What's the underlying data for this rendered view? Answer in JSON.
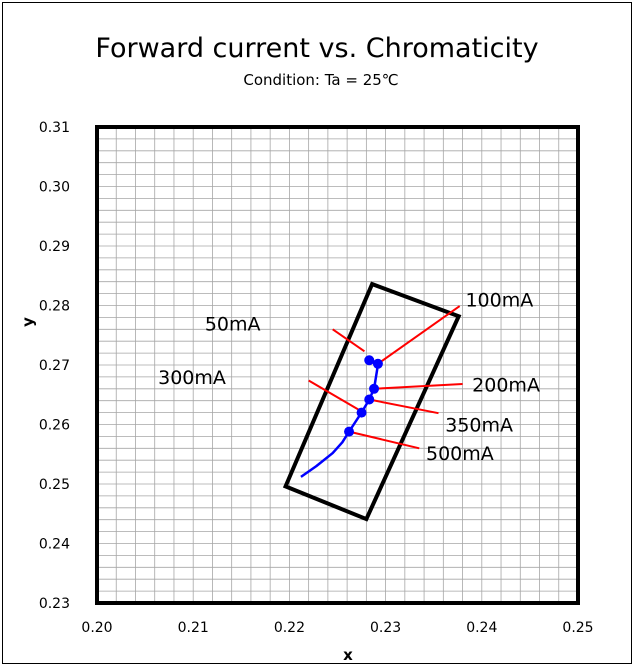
{
  "chart_data": {
    "type": "scatter",
    "title": "Forward current vs. Chromaticity",
    "subtitle": "Condition: Ta = 25℃",
    "xlabel": "x",
    "ylabel": "y",
    "xlim": [
      0.2,
      0.25
    ],
    "ylim": [
      0.23,
      0.31
    ],
    "x_ticks": [
      "0.20",
      "0.21",
      "0.22",
      "0.23",
      "0.24",
      "0.25"
    ],
    "y_ticks": [
      "0.23",
      "0.24",
      "0.25",
      "0.26",
      "0.27",
      "0.28",
      "0.29",
      "0.30",
      "0.31"
    ],
    "grid": true,
    "colors": {
      "series": "#0000ff",
      "leader": "#ff0000",
      "box": "#000000"
    },
    "series": [
      {
        "curve": [
          [
            0.2212,
            0.2512
          ],
          [
            0.2228,
            0.253
          ],
          [
            0.2245,
            0.2552
          ],
          [
            0.2255,
            0.257
          ],
          [
            0.2262,
            0.2588
          ],
          [
            0.2275,
            0.262
          ],
          [
            0.2283,
            0.2642
          ],
          [
            0.2288,
            0.266
          ],
          [
            0.229,
            0.268
          ],
          [
            0.2292,
            0.27
          ],
          [
            0.2283,
            0.2708
          ]
        ],
        "points": [
          {
            "label": "50mA",
            "x": 0.2283,
            "y": 0.2708
          },
          {
            "label": "100mA",
            "x": 0.2292,
            "y": 0.2702
          },
          {
            "label": "200mA",
            "x": 0.2288,
            "y": 0.266
          },
          {
            "label": "350mA",
            "x": 0.2283,
            "y": 0.2642
          },
          {
            "label": "300mA",
            "x": 0.2275,
            "y": 0.262
          },
          {
            "label": "500mA",
            "x": 0.2262,
            "y": 0.2588
          }
        ]
      }
    ],
    "bin_box": [
      [
        0.2196,
        0.2496
      ],
      [
        0.2286,
        0.2836
      ],
      [
        0.2376,
        0.2782
      ],
      [
        0.228,
        0.2441
      ]
    ],
    "annotations": [
      {
        "text": "100mA",
        "text_pos": [
          0.2383,
          0.281
        ],
        "anchor": "start",
        "leader": [
          [
            0.2377,
            0.2799
          ],
          [
            0.2292,
            0.2702
          ]
        ]
      },
      {
        "text": "50mA",
        "text_pos": [
          0.217,
          0.277
        ],
        "anchor": "end",
        "leader": [
          [
            0.2245,
            0.276
          ],
          [
            0.2278,
            0.2723
          ]
        ]
      },
      {
        "text": "300mA",
        "text_pos": [
          0.2134,
          0.268
        ],
        "anchor": "end",
        "leader": [
          [
            0.222,
            0.2674
          ],
          [
            0.2275,
            0.2622
          ]
        ]
      },
      {
        "text": "200mA",
        "text_pos": [
          0.239,
          0.2667
        ],
        "anchor": "start",
        "leader": [
          [
            0.238,
            0.2668
          ],
          [
            0.2288,
            0.266
          ]
        ]
      },
      {
        "text": "350mA",
        "text_pos": [
          0.2362,
          0.26
        ],
        "anchor": "start",
        "leader": [
          [
            0.2355,
            0.2619
          ],
          [
            0.2283,
            0.2642
          ]
        ]
      },
      {
        "text": "500mA",
        "text_pos": [
          0.2342,
          0.2552
        ],
        "anchor": "start",
        "leader": [
          [
            0.2335,
            0.256
          ],
          [
            0.2262,
            0.2588
          ]
        ]
      }
    ]
  }
}
